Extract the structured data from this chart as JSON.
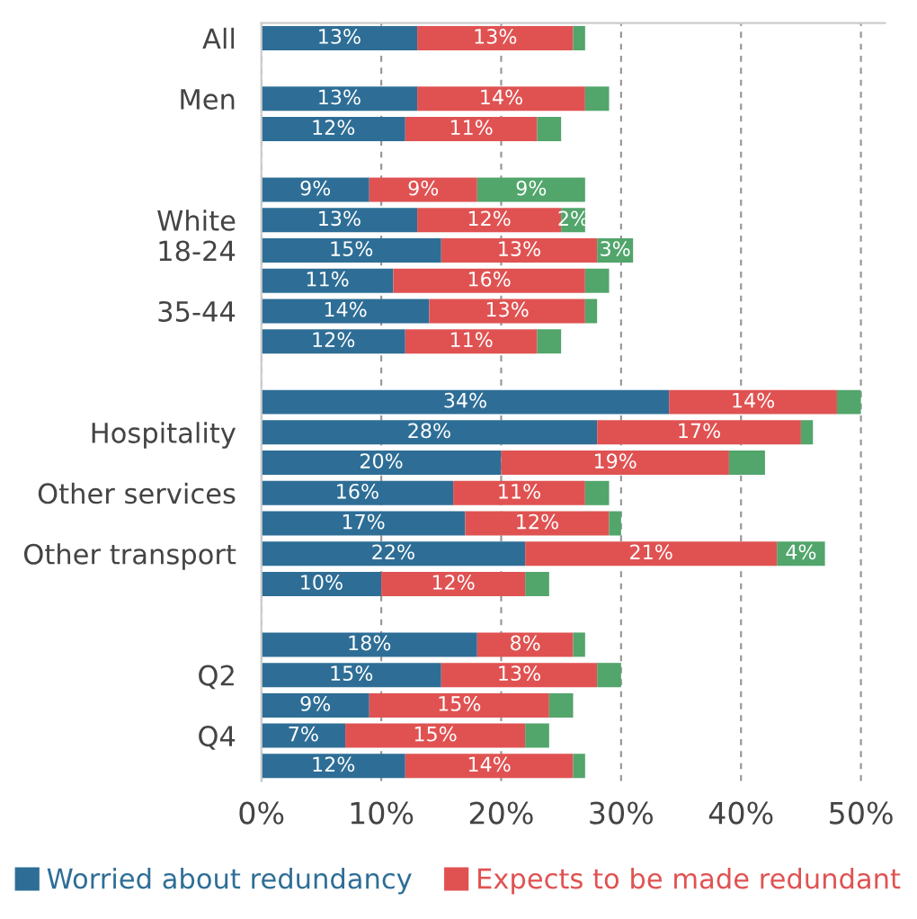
{
  "chart_data": {
    "type": "bar",
    "orientation": "horizontal",
    "stacked": true,
    "categories": [
      "All",
      null,
      "Men",
      null,
      null,
      null,
      "White",
      "18-24",
      null,
      "35-44",
      null,
      null,
      null,
      "Hospitality",
      null,
      "Other services",
      null,
      "Other transport",
      null,
      null,
      null,
      "Q2",
      null,
      "Q4",
      null
    ],
    "series": [
      {
        "name": "Worried about redundancy",
        "color": "#2e6e96",
        "values": [
          13,
          null,
          13,
          12,
          null,
          9,
          13,
          15,
          11,
          14,
          12,
          null,
          34,
          28,
          20,
          16,
          17,
          22,
          10,
          null,
          18,
          15,
          9,
          7,
          12
        ],
        "value_labels": [
          "13%",
          null,
          "13%",
          "12%",
          null,
          "9%",
          "13%",
          "15%",
          "11%",
          "14%",
          "12%",
          null,
          "34%",
          "28%",
          "20%",
          "16%",
          "17%",
          "22%",
          "10%",
          null,
          "18%",
          "15%",
          "9%",
          "7%",
          "12%"
        ]
      },
      {
        "name": "Expects to be made redundant",
        "color": "#e05252",
        "values": [
          13,
          null,
          14,
          11,
          null,
          9,
          12,
          13,
          16,
          13,
          11,
          null,
          14,
          17,
          19,
          11,
          12,
          21,
          12,
          null,
          8,
          13,
          15,
          15,
          14
        ],
        "value_labels": [
          "13%",
          null,
          "14%",
          "11%",
          null,
          "9%",
          "12%",
          "13%",
          "16%",
          "13%",
          "11%",
          null,
          "14%",
          "17%",
          "19%",
          "11%",
          "12%",
          "21%",
          "12%",
          null,
          "8%",
          "13%",
          "15%",
          "15%",
          "14%"
        ]
      },
      {
        "color": "#52a56b",
        "values": [
          1,
          null,
          2,
          2,
          null,
          9,
          2,
          3,
          2,
          1,
          2,
          null,
          2,
          1,
          3,
          2,
          1,
          4,
          2,
          null,
          1,
          2,
          2,
          2,
          1
        ],
        "value_labels": [
          null,
          null,
          null,
          null,
          null,
          "9%",
          "2%",
          "3%",
          null,
          null,
          null,
          null,
          null,
          null,
          null,
          null,
          null,
          "4%",
          null,
          null,
          null,
          null,
          null,
          null,
          null
        ]
      }
    ],
    "xlim": [
      0,
      52
    ],
    "xticks": [
      {
        "value": 0,
        "label": "0%"
      },
      {
        "value": 10,
        "label": "10%"
      },
      {
        "value": 20,
        "label": "20%"
      },
      {
        "value": 30,
        "label": "30%"
      },
      {
        "value": 40,
        "label": "40%"
      },
      {
        "value": 50,
        "label": "50%"
      }
    ],
    "grid": "x",
    "legend": "bottom"
  }
}
